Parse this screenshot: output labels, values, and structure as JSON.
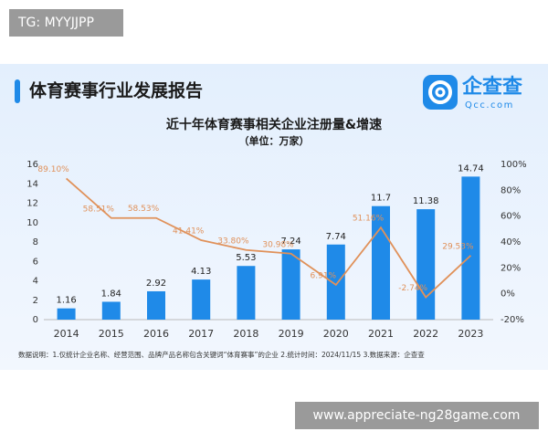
{
  "tag": "TG: MYYJJPP",
  "header": {
    "title": "体育赛事行业发展报告",
    "logo": "企查查",
    "logo_sub": "Qcc.com"
  },
  "chart_data": {
    "type": "combo",
    "title": "近十年体育赛事相关企业注册量&增速",
    "subtitle": "（单位：万家）",
    "categories": [
      "2014",
      "2015",
      "2016",
      "2017",
      "2018",
      "2019",
      "2020",
      "2021",
      "2022",
      "2023"
    ],
    "series": [
      {
        "type": "bar",
        "color": "#1f8ae8",
        "values": [
          1.16,
          1.84,
          2.92,
          4.13,
          5.53,
          7.24,
          7.74,
          11.7,
          11.38,
          14.74
        ]
      },
      {
        "type": "line",
        "axis": "y2",
        "color": "#e0915a",
        "values": [
          89.1,
          58.51,
          58.53,
          41.41,
          33.8,
          30.98,
          6.91,
          51.16,
          -2.74,
          29.53
        ],
        "value_labels": [
          "89.10%",
          "58.51%",
          "58.53%",
          "41.41%",
          "33.80%",
          "30.98%",
          "6.91%",
          "51.16%",
          "-2.74%",
          "29.53%"
        ]
      }
    ],
    "ylim": [
      0,
      16
    ],
    "yticks": [
      0,
      2,
      4,
      6,
      8,
      10,
      12,
      14,
      16
    ],
    "y2lim": [
      -20,
      100
    ],
    "y2ticks": [
      {
        "value": -20,
        "label": "-20%"
      },
      {
        "value": 0,
        "label": "0%"
      },
      {
        "value": 20,
        "label": "20%"
      },
      {
        "value": 40,
        "label": "40%"
      },
      {
        "value": 60,
        "label": "60%"
      },
      {
        "value": 80,
        "label": "80%"
      },
      {
        "value": 100,
        "label": "100%"
      }
    ],
    "grid": false
  },
  "footnote": "数据说明：1.仅统计企业名称、经营范围、品牌产品名称包含关键词“体育赛事”的企业  2.统计时间：2024/11/15  3.数据来源：企查查",
  "watermark": "www.appreciate-ng28game.com"
}
